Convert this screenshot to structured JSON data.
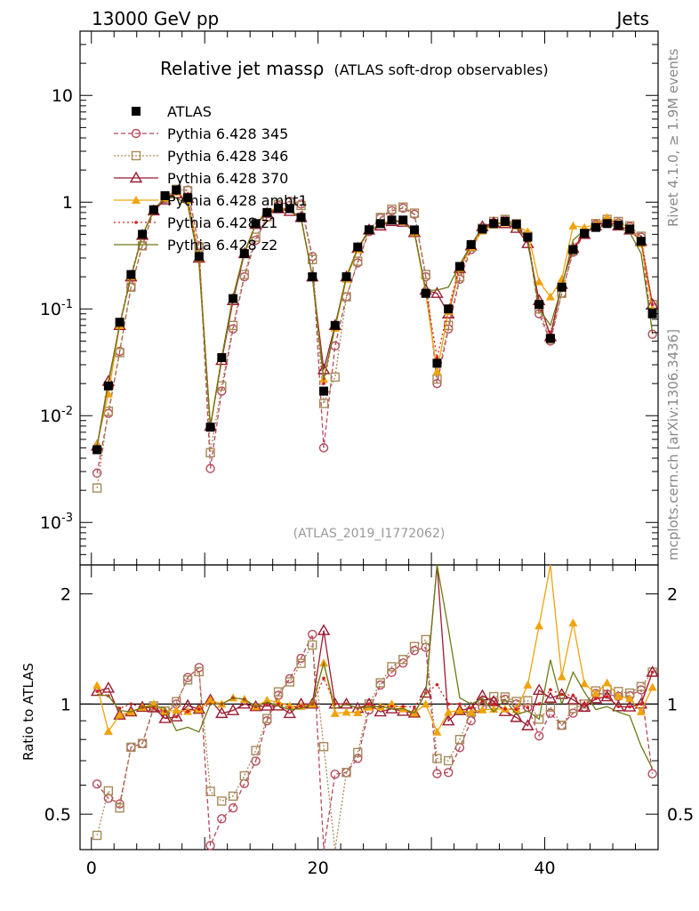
{
  "header": {
    "left": "13000 GeV pp",
    "right": "Jets"
  },
  "side_labels": {
    "rivet": "Rivet 4.1.0, ≥ 1.9M events",
    "mcplots": "mcplots.cern.ch [arXiv:1306.3436]"
  },
  "chart_data": {
    "type": "line",
    "title": "Relative jet massρ",
    "subtitle": "(ATLAS soft-drop observables)",
    "analysis_label": "(ATLAS_2019_I1772062)",
    "xlabel": "",
    "ylabel": "",
    "ratio_ylabel": "Ratio to ATLAS",
    "xlim": [
      -1,
      50
    ],
    "ylim": [
      0.0004,
      40
    ],
    "yscale": "log",
    "ratio_ylim": [
      0.4,
      2.4
    ],
    "x_ticks": [
      "0",
      "20",
      "40"
    ],
    "x_tick_values": [
      0,
      20,
      40
    ],
    "y_ticks": [
      "10^-3",
      "10^-2",
      "10^-1",
      "1",
      "10"
    ],
    "ratio_ticks": [
      "0.5",
      "1",
      "2"
    ],
    "x": [
      0.5,
      1.5,
      2.5,
      3.5,
      4.5,
      5.5,
      6.5,
      7.5,
      8.5,
      9.5,
      10.5,
      11.5,
      12.5,
      13.5,
      14.5,
      15.5,
      16.5,
      17.5,
      18.5,
      19.5,
      20.5,
      21.5,
      22.5,
      23.5,
      24.5,
      25.5,
      26.5,
      27.5,
      28.5,
      29.5,
      30.5,
      31.5,
      32.5,
      33.5,
      34.5,
      35.5,
      36.5,
      37.5,
      38.5,
      39.5,
      40.5,
      41.5,
      42.5,
      43.5,
      44.5,
      45.5,
      46.5,
      47.5,
      48.5,
      49.5
    ],
    "series": [
      {
        "name": "ATLAS",
        "color": "#000000",
        "values": [
          0.0048,
          0.019,
          0.075,
          0.21,
          0.5,
          0.85,
          1.15,
          1.3,
          1.1,
          0.31,
          0.0078,
          0.035,
          0.125,
          0.33,
          0.63,
          0.8,
          0.88,
          0.87,
          0.72,
          0.2,
          0.017,
          0.07,
          0.2,
          0.38,
          0.55,
          0.63,
          0.68,
          0.68,
          0.55,
          0.14,
          0.031,
          0.1,
          0.25,
          0.4,
          0.56,
          0.63,
          0.66,
          0.62,
          0.47,
          0.11,
          0.053,
          0.16,
          0.36,
          0.51,
          0.58,
          0.63,
          0.61,
          0.56,
          0.43,
          0.09
        ]
      },
      {
        "name": "Pythia 6.428 345",
        "color": "#b5485a",
        "values": [
          0.0029,
          0.0105,
          0.04,
          0.16,
          0.39,
          0.83,
          1.08,
          1.3,
          1.3,
          0.39,
          0.0032,
          0.017,
          0.065,
          0.2,
          0.44,
          0.72,
          0.93,
          1.02,
          0.96,
          0.31,
          0.005,
          0.045,
          0.13,
          0.27,
          0.53,
          0.71,
          0.83,
          0.88,
          0.77,
          0.2,
          0.02,
          0.065,
          0.19,
          0.36,
          0.55,
          0.64,
          0.68,
          0.62,
          0.46,
          0.09,
          0.05,
          0.14,
          0.34,
          0.5,
          0.62,
          0.67,
          0.64,
          0.59,
          0.47,
          0.058
        ]
      },
      {
        "name": "Pythia 6.428 346",
        "color": "#a88a5a",
        "values": [
          0.0021,
          0.011,
          0.039,
          0.16,
          0.39,
          0.84,
          1.1,
          1.32,
          1.28,
          0.38,
          0.0045,
          0.019,
          0.07,
          0.21,
          0.47,
          0.73,
          0.95,
          1.0,
          0.93,
          0.29,
          0.013,
          0.023,
          0.13,
          0.28,
          0.55,
          0.72,
          0.86,
          0.9,
          0.79,
          0.21,
          0.022,
          0.07,
          0.2,
          0.38,
          0.57,
          0.66,
          0.69,
          0.63,
          0.48,
          0.1,
          0.052,
          0.14,
          0.35,
          0.51,
          0.63,
          0.69,
          0.66,
          0.6,
          0.48,
          0.11
        ]
      },
      {
        "name": "Pythia 6.428 370",
        "color": "#9b1b30",
        "values": [
          0.0052,
          0.021,
          0.07,
          0.2,
          0.49,
          0.83,
          1.05,
          1.2,
          1.09,
          0.3,
          0.008,
          0.033,
          0.12,
          0.33,
          0.62,
          0.79,
          0.87,
          0.82,
          0.72,
          0.2,
          0.027,
          0.07,
          0.2,
          0.37,
          0.55,
          0.6,
          0.66,
          0.65,
          0.52,
          0.15,
          0.14,
          0.09,
          0.24,
          0.39,
          0.59,
          0.64,
          0.63,
          0.57,
          0.41,
          0.12,
          0.055,
          0.17,
          0.37,
          0.5,
          0.6,
          0.66,
          0.6,
          0.55,
          0.43,
          0.11
        ]
      },
      {
        "name": "Pythia 6.428 ambt1",
        "color": "#f0a30a",
        "values": [
          0.0054,
          0.016,
          0.07,
          0.2,
          0.49,
          0.85,
          1.1,
          1.25,
          1.05,
          0.3,
          0.008,
          0.035,
          0.13,
          0.34,
          0.62,
          0.82,
          0.89,
          0.86,
          0.71,
          0.2,
          0.022,
          0.066,
          0.19,
          0.36,
          0.54,
          0.62,
          0.68,
          0.66,
          0.52,
          0.14,
          0.026,
          0.095,
          0.24,
          0.38,
          0.54,
          0.61,
          0.64,
          0.6,
          0.53,
          0.18,
          0.13,
          0.19,
          0.6,
          0.58,
          0.62,
          0.72,
          0.64,
          0.58,
          0.41,
          0.1
        ]
      },
      {
        "name": "Pythia 6.428 z1",
        "color": "#d02020",
        "values": [
          0.0052,
          0.02,
          0.073,
          0.21,
          0.49,
          0.83,
          1.1,
          1.2,
          1.05,
          0.3,
          0.0078,
          0.035,
          0.13,
          0.34,
          0.62,
          0.8,
          0.88,
          0.85,
          0.71,
          0.2,
          0.02,
          0.07,
          0.2,
          0.37,
          0.55,
          0.62,
          0.67,
          0.67,
          0.54,
          0.15,
          0.035,
          0.1,
          0.25,
          0.39,
          0.57,
          0.63,
          0.64,
          0.6,
          0.46,
          0.11,
          0.058,
          0.17,
          0.38,
          0.51,
          0.6,
          0.66,
          0.6,
          0.55,
          0.43,
          0.11
        ]
      },
      {
        "name": "Pythia 6.428 z2",
        "color": "#6e7a18",
        "values": [
          0.0051,
          0.02,
          0.072,
          0.2,
          0.49,
          0.84,
          1.12,
          1.1,
          0.95,
          0.26,
          0.0078,
          0.035,
          0.13,
          0.34,
          0.62,
          0.81,
          0.87,
          0.84,
          0.7,
          0.2,
          0.022,
          0.068,
          0.2,
          0.37,
          0.54,
          0.62,
          0.66,
          0.66,
          0.52,
          0.15,
          0.15,
          0.16,
          0.26,
          0.4,
          0.58,
          0.6,
          0.68,
          0.58,
          0.45,
          0.1,
          0.07,
          0.16,
          0.44,
          0.55,
          0.56,
          0.62,
          0.58,
          0.52,
          0.33,
          0.06
        ]
      }
    ]
  }
}
